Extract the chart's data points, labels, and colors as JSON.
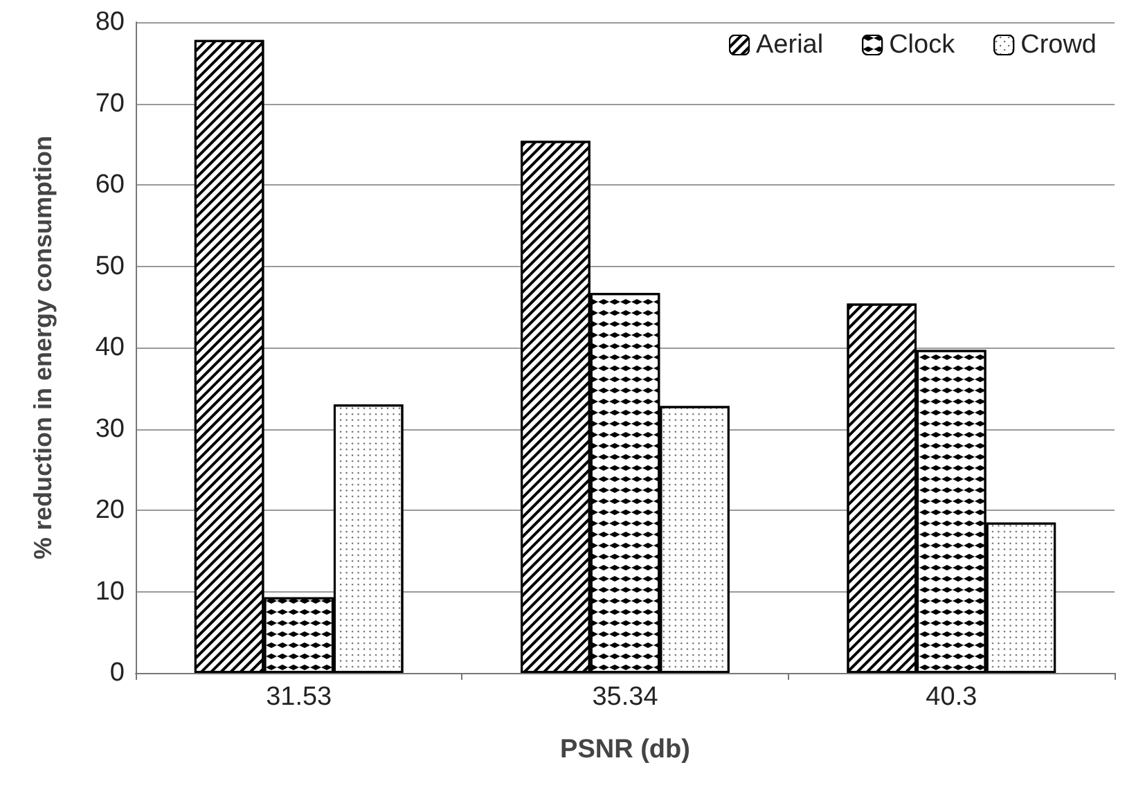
{
  "chart_data": {
    "type": "bar",
    "xlabel": "PSNR (db)",
    "ylabel": "% reduction in energy consumption",
    "categories": [
      "31.53",
      "35.34",
      "40.3"
    ],
    "series": [
      {
        "name": "Aerial",
        "color": "#ffffff",
        "values": [
          77.8,
          65.4,
          45.4
        ]
      },
      {
        "name": "Clock",
        "color": "#ffffff",
        "values": [
          9.3,
          46.7,
          39.7
        ]
      },
      {
        "name": "Crowd",
        "color": "#ffffff",
        "values": [
          33.0,
          32.8,
          18.5
        ]
      }
    ],
    "ylim": [
      0,
      80
    ],
    "yticks": [
      0,
      10,
      20,
      30,
      40,
      50,
      60,
      70,
      80
    ],
    "grid": "y",
    "legend": "top right"
  }
}
